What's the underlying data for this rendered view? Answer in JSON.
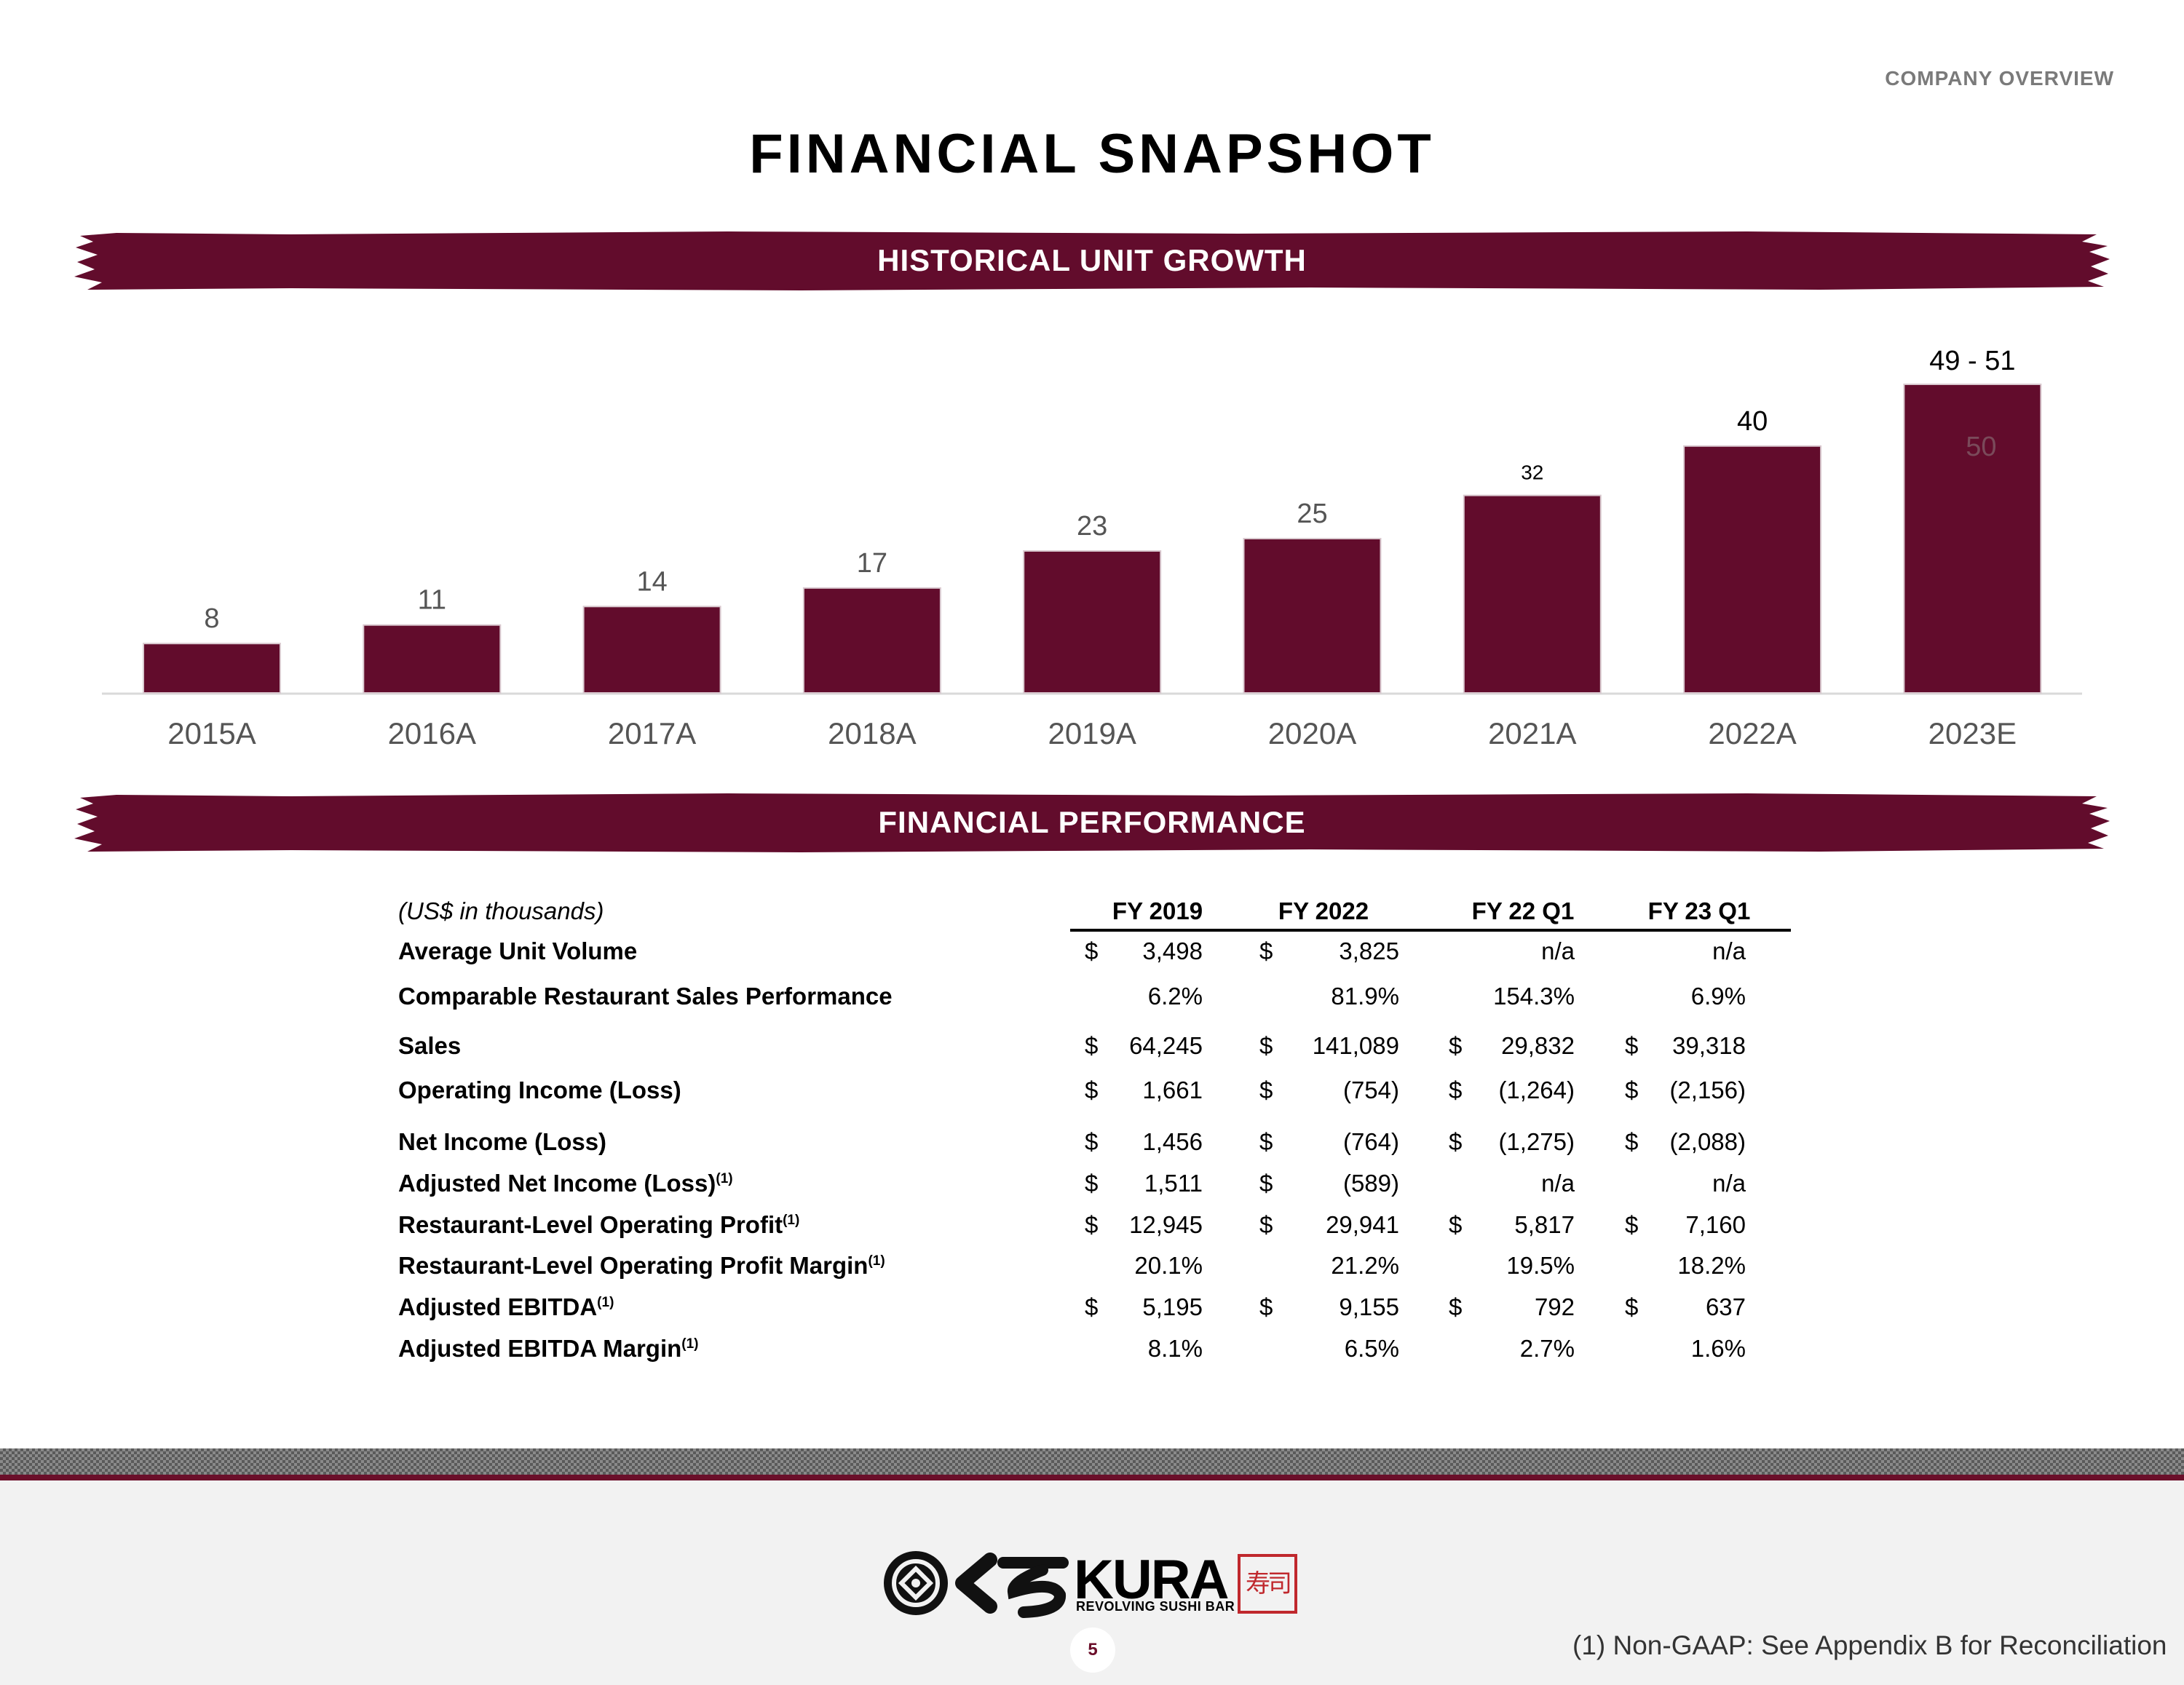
{
  "header": {
    "section": "COMPANY OVERVIEW",
    "title": "FINANCIAL SNAPSHOT"
  },
  "banners": {
    "unit_growth": "HISTORICAL UNIT GROWTH",
    "performance": "FINANCIAL PERFORMANCE"
  },
  "colors": {
    "brand": "#620c2c",
    "bar": "#620c2c",
    "axis": "#d9d9d9"
  },
  "chart_data": {
    "type": "bar",
    "title": "HISTORICAL UNIT GROWTH",
    "categories": [
      "2015A",
      "2016A",
      "2017A",
      "2018A",
      "2019A",
      "2020A",
      "2021A",
      "2022A",
      "2023E"
    ],
    "values": [
      8,
      11,
      14,
      17,
      23,
      25,
      32,
      40,
      50
    ],
    "data_labels": [
      "8",
      "11",
      "14",
      "17",
      "23",
      "25",
      "32",
      "40",
      "49 - 51"
    ],
    "inner_label": "50",
    "xlabel": "",
    "ylabel": "",
    "ylim": [
      0,
      50
    ],
    "grid": false,
    "legend": "none"
  },
  "table": {
    "unit_note": "(US$ in thousands)",
    "headers": [
      "FY 2019",
      "FY 2022",
      "FY 22 Q1",
      "FY 23 Q1"
    ],
    "rows": [
      {
        "label": "Average Unit Volume",
        "sup": "",
        "cells": [
          [
            "$",
            "3,498"
          ],
          [
            "$",
            "3,825"
          ],
          [
            "",
            "n/a"
          ],
          [
            "",
            "n/a"
          ]
        ]
      },
      {
        "label": "Comparable Restaurant Sales Performance",
        "sup": "",
        "cells": [
          [
            "",
            "6.2%"
          ],
          [
            "",
            "81.9%"
          ],
          [
            "",
            "154.3%"
          ],
          [
            "",
            "6.9%"
          ]
        ]
      },
      {
        "label": "Sales",
        "sup": "",
        "cells": [
          [
            "$",
            "64,245"
          ],
          [
            "$",
            "141,089"
          ],
          [
            "$",
            "29,832"
          ],
          [
            "$",
            "39,318"
          ]
        ]
      },
      {
        "label": "Operating Income (Loss)",
        "sup": "",
        "cells": [
          [
            "$",
            "1,661"
          ],
          [
            "$",
            "(754)"
          ],
          [
            "$",
            "(1,264)"
          ],
          [
            "$",
            "(2,156)"
          ]
        ]
      },
      {
        "label": "Net Income (Loss)",
        "sup": "",
        "cells": [
          [
            "$",
            "1,456"
          ],
          [
            "$",
            "(764)"
          ],
          [
            "$",
            "(1,275)"
          ],
          [
            "$",
            "(2,088)"
          ]
        ]
      },
      {
        "label": "Adjusted Net Income (Loss)",
        "sup": "(1)",
        "cells": [
          [
            "$",
            "1,511"
          ],
          [
            "$",
            "(589)"
          ],
          [
            "",
            "n/a"
          ],
          [
            "",
            "n/a"
          ]
        ]
      },
      {
        "label": "Restaurant-Level Operating Profit",
        "sup": "(1)",
        "cells": [
          [
            "$",
            "12,945"
          ],
          [
            "$",
            "29,941"
          ],
          [
            "$",
            "5,817"
          ],
          [
            "$",
            "7,160"
          ]
        ]
      },
      {
        "label": "Restaurant-Level Operating Profit Margin",
        "sup": "(1)",
        "cells": [
          [
            "",
            "20.1%"
          ],
          [
            "",
            "21.2%"
          ],
          [
            "",
            "19.5%"
          ],
          [
            "",
            "18.2%"
          ]
        ]
      },
      {
        "label": "Adjusted EBITDA",
        "sup": "(1)",
        "cells": [
          [
            "$",
            "5,195"
          ],
          [
            "$",
            "9,155"
          ],
          [
            "$",
            "792"
          ],
          [
            "$",
            "637"
          ]
        ]
      },
      {
        "label": "Adjusted EBITDA Margin",
        "sup": "(1)",
        "cells": [
          [
            "",
            "8.1%"
          ],
          [
            "",
            "6.5%"
          ],
          [
            "",
            "2.7%"
          ],
          [
            "",
            "1.6%"
          ]
        ]
      }
    ]
  },
  "footer": {
    "brand_word": "KURA",
    "brand_sub": "REVOLVING SUSHI BAR",
    "brand_kanji": "寿司",
    "page_number": "5",
    "footnote": "(1)  Non-GAAP: See Appendix B for Reconciliation"
  }
}
